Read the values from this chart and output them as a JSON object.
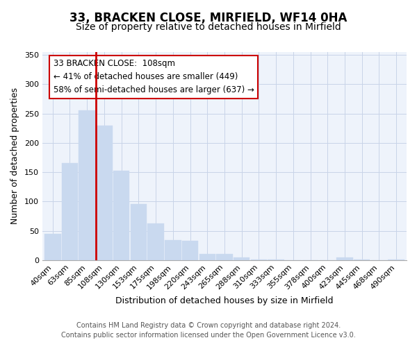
{
  "title": "33, BRACKEN CLOSE, MIRFIELD, WF14 0HA",
  "subtitle": "Size of property relative to detached houses in Mirfield",
  "xlabel": "Distribution of detached houses by size in Mirfield",
  "ylabel": "Number of detached properties",
  "bar_labels": [
    "40sqm",
    "63sqm",
    "85sqm",
    "108sqm",
    "130sqm",
    "153sqm",
    "175sqm",
    "198sqm",
    "220sqm",
    "243sqm",
    "265sqm",
    "288sqm",
    "310sqm",
    "333sqm",
    "355sqm",
    "378sqm",
    "400sqm",
    "423sqm",
    "445sqm",
    "468sqm",
    "490sqm"
  ],
  "bar_heights": [
    45,
    165,
    255,
    230,
    153,
    96,
    62,
    34,
    33,
    11,
    10,
    5,
    1,
    1,
    0,
    0,
    0,
    5,
    1,
    0,
    1
  ],
  "bar_color": "#c9d9ef",
  "vline_color": "#cc0000",
  "vline_x": 2.5,
  "annotation_line1": "33 BRACKEN CLOSE:  108sqm",
  "annotation_line2": "← 41% of detached houses are smaller (449)",
  "annotation_line3": "58% of semi-detached houses are larger (637) →",
  "annotation_box_facecolor": "#ffffff",
  "annotation_box_edgecolor": "#cc0000",
  "ylim": [
    0,
    355
  ],
  "yticks": [
    0,
    50,
    100,
    150,
    200,
    250,
    300,
    350
  ],
  "footer_line1": "Contains HM Land Registry data © Crown copyright and database right 2024.",
  "footer_line2": "Contains public sector information licensed under the Open Government Licence v3.0.",
  "title_fontsize": 12,
  "subtitle_fontsize": 10,
  "axis_label_fontsize": 9,
  "tick_fontsize": 8,
  "footer_fontsize": 7,
  "bg_color": "#eef3fb"
}
